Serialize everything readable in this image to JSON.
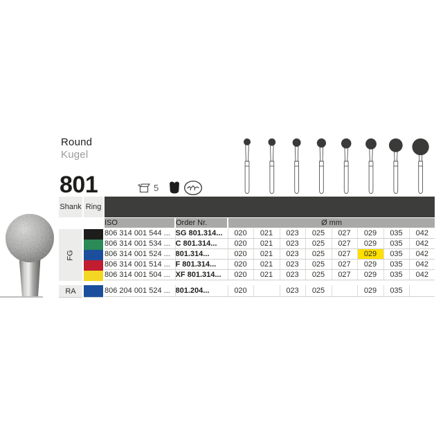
{
  "page": {
    "title": "Round",
    "subtitle": "Kugel",
    "product_code": "801",
    "pack_quantity": "5"
  },
  "table": {
    "shank_header": "Shank",
    "ring_header": "Ring",
    "iso_header": "ISO",
    "order_header": "Order Nr.",
    "diameter_header": "Ø mm",
    "fg_label": "FG",
    "ra_label": "RA",
    "highlight_color": "#ffe000",
    "fg_rows": [
      {
        "ring_color": "#1d1d1b",
        "ring_name": "black",
        "iso": "806 314 001 544 ...",
        "order": "SG 801.314...",
        "sizes": [
          "020",
          "021",
          "023",
          "025",
          "027",
          "029",
          "035",
          "042"
        ],
        "highlight": ""
      },
      {
        "ring_color": "#2b8a55",
        "ring_name": "green",
        "iso": "806 314 001 534 ...",
        "order": "C 801.314...",
        "sizes": [
          "020",
          "021",
          "023",
          "025",
          "027",
          "029",
          "035",
          "042"
        ],
        "highlight": ""
      },
      {
        "ring_color": "#1b4f9e",
        "ring_name": "blue",
        "iso": "806 314 001 524 ...",
        "order": "801.314...",
        "sizes": [
          "020",
          "021",
          "023",
          "025",
          "027",
          "029",
          "035",
          "042"
        ],
        "highlight": "029"
      },
      {
        "ring_color": "#c21c30",
        "ring_name": "red",
        "iso": "806 314 001 514 ...",
        "order": "F 801.314...",
        "sizes": [
          "020",
          "021",
          "023",
          "025",
          "027",
          "029",
          "035",
          "042"
        ],
        "highlight": ""
      },
      {
        "ring_color": "#f3d722",
        "ring_name": "yellow",
        "iso": "806 314 001 504 ...",
        "order": "XF 801.314...",
        "sizes": [
          "020",
          "021",
          "023",
          "025",
          "027",
          "029",
          "035",
          "042"
        ],
        "highlight": ""
      }
    ],
    "ra_row": {
      "ring_color": "#1b4f9e",
      "ring_name": "blue",
      "iso": "806 204 001 524 ...",
      "order": "801.204...",
      "sizes": [
        "020",
        "",
        "023",
        "025",
        "",
        "029",
        "035",
        ""
      ]
    }
  },
  "illustration": {
    "sizes": [
      20,
      21,
      23,
      25,
      27,
      29,
      35,
      42
    ]
  }
}
